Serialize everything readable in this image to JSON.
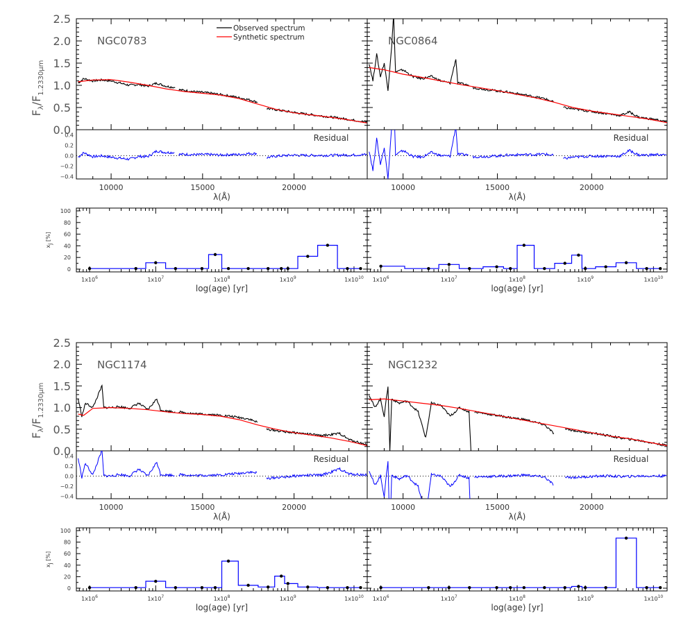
{
  "chart_data": {
    "type": "line",
    "legend": {
      "placement": "top-left-of-first-panel",
      "entries": [
        {
          "label": "Observed spectrum",
          "color": "#000000"
        },
        {
          "label": "Synthetic spectrum",
          "color": "#ff0000"
        }
      ]
    },
    "spectrum_ylabel": "Fλ/F1.2330μm",
    "spectrum_ylabel_main": "F",
    "spectrum_ylabel_sub1": "λ",
    "spectrum_ylabel_mid": "/F",
    "spectrum_ylabel_sub2": "1.2330μm",
    "spectrum_yticks": [
      "0.0",
      "0.5",
      "1.0",
      "1.5",
      "2.0",
      "2.5"
    ],
    "spectrum_ylim": [
      0,
      2.5
    ],
    "wavelength_xlabel": "λ(Å)",
    "wavelength_xlim": [
      8100,
      24000
    ],
    "wavelength_xticks": [
      "10000",
      "15000",
      "20000"
    ],
    "residual_label": "Residual",
    "residual_ylim": [
      -0.45,
      0.5
    ],
    "residual_yticks": [
      "0.4",
      "0.2",
      "0.0",
      "−0.2",
      "−0.4"
    ],
    "age_xlabel": "log(age) [yr]",
    "age_ylabel": "x",
    "age_ylabel_sub": "j",
    "age_ylabel_unit": " [%]",
    "age_yticks": [
      "0",
      "20",
      "40",
      "60",
      "80",
      "100"
    ],
    "age_ylim": [
      0,
      100
    ],
    "age_xlim_log": [
      5.8,
      10.2
    ],
    "age_xticks": [
      {
        "base": "1x10",
        "exp": "6"
      },
      {
        "base": "1x10",
        "exp": "7"
      },
      {
        "base": "1x10",
        "exp": "8"
      },
      {
        "base": "1x10",
        "exp": "9"
      },
      {
        "base": "1x10",
        "exp": "10"
      }
    ],
    "age_grid_log": [
      6.0,
      6.7,
      7.0,
      7.3,
      7.7,
      7.9,
      8.1,
      8.4,
      8.7,
      8.9,
      9.0,
      9.3,
      9.6,
      9.9,
      10.1
    ],
    "panels": [
      {
        "galaxy": "NGC0783",
        "synthetic": [
          [
            8200,
            1.08
          ],
          [
            9000,
            1.12
          ],
          [
            10000,
            1.13
          ],
          [
            11000,
            1.07
          ],
          [
            12000,
            1.0
          ],
          [
            13000,
            0.92
          ],
          [
            14000,
            0.86
          ],
          [
            15000,
            0.82
          ],
          [
            16000,
            0.78
          ],
          [
            17000,
            0.7
          ],
          [
            18000,
            0.58
          ],
          [
            19000,
            0.46
          ],
          [
            20000,
            0.38
          ],
          [
            21000,
            0.33
          ],
          [
            22000,
            0.28
          ],
          [
            23000,
            0.22
          ],
          [
            24000,
            0.15
          ]
        ],
        "observed_segments": [
          [
            [
              8200,
              1.05
            ],
            [
              8500,
              1.15
            ],
            [
              9000,
              1.1
            ],
            [
              9500,
              1.12
            ],
            [
              10000,
              1.1
            ],
            [
              10500,
              1.05
            ],
            [
              11000,
              1.0
            ],
            [
              11500,
              1.02
            ],
            [
              12000,
              0.98
            ],
            [
              12500,
              1.05
            ],
            [
              13000,
              0.98
            ],
            [
              13500,
              0.95
            ]
          ],
          [
            [
              13700,
              0.9
            ],
            [
              14500,
              0.86
            ],
            [
              15500,
              0.82
            ],
            [
              16500,
              0.76
            ],
            [
              17500,
              0.68
            ],
            [
              18000,
              0.62
            ]
          ],
          [
            [
              18500,
              0.48
            ],
            [
              19500,
              0.42
            ],
            [
              20500,
              0.36
            ],
            [
              21500,
              0.31
            ],
            [
              22500,
              0.26
            ],
            [
              23500,
              0.2
            ],
            [
              24000,
              0.17
            ]
          ]
        ],
        "bins": [
          {
            "x": 6.0,
            "y": 1
          },
          {
            "x": 6.7,
            "y": 1
          },
          {
            "x": 7.0,
            "y": 11
          },
          {
            "x": 7.3,
            "y": 1
          },
          {
            "x": 7.7,
            "y": 1
          },
          {
            "x": 7.9,
            "y": 25
          },
          {
            "x": 8.1,
            "y": 1
          },
          {
            "x": 8.4,
            "y": 1
          },
          {
            "x": 8.7,
            "y": 1
          },
          {
            "x": 8.9,
            "y": 1
          },
          {
            "x": 9.0,
            "y": 1
          },
          {
            "x": 9.3,
            "y": 22
          },
          {
            "x": 9.6,
            "y": 41
          },
          {
            "x": 9.9,
            "y": 1
          },
          {
            "x": 10.1,
            "y": 1
          }
        ]
      },
      {
        "galaxy": "NGC0864",
        "synthetic": [
          [
            8200,
            1.4
          ],
          [
            9000,
            1.35
          ],
          [
            10000,
            1.25
          ],
          [
            11000,
            1.18
          ],
          [
            12000,
            1.1
          ],
          [
            13000,
            1.02
          ],
          [
            14000,
            0.95
          ],
          [
            15000,
            0.88
          ],
          [
            16000,
            0.8
          ],
          [
            17000,
            0.72
          ],
          [
            18000,
            0.62
          ],
          [
            19000,
            0.5
          ],
          [
            20000,
            0.42
          ],
          [
            21000,
            0.36
          ],
          [
            22000,
            0.3
          ],
          [
            23000,
            0.24
          ],
          [
            24000,
            0.16
          ]
        ],
        "observed_segments": [
          [
            [
              8200,
              1.5
            ],
            [
              8400,
              1.1
            ],
            [
              8600,
              1.7
            ],
            [
              8800,
              1.2
            ],
            [
              9000,
              1.5
            ],
            [
              9200,
              0.9
            ],
            [
              9400,
              1.9
            ],
            [
              9500,
              2.6
            ],
            [
              9600,
              1.3
            ],
            [
              10000,
              1.35
            ],
            [
              10500,
              1.2
            ],
            [
              11000,
              1.15
            ],
            [
              11500,
              1.2
            ],
            [
              12000,
              1.1
            ],
            [
              12500,
              1.05
            ],
            [
              12800,
              1.6
            ],
            [
              12900,
              1.05
            ],
            [
              13500,
              1.0
            ]
          ],
          [
            [
              13700,
              0.95
            ],
            [
              14500,
              0.9
            ],
            [
              15500,
              0.85
            ],
            [
              16500,
              0.78
            ],
            [
              17500,
              0.7
            ],
            [
              18000,
              0.62
            ]
          ],
          [
            [
              18500,
              0.5
            ],
            [
              19500,
              0.44
            ],
            [
              20500,
              0.38
            ],
            [
              21500,
              0.32
            ],
            [
              22000,
              0.4
            ],
            [
              22500,
              0.28
            ],
            [
              23500,
              0.22
            ],
            [
              24000,
              0.17
            ]
          ]
        ],
        "bins": [
          {
            "x": 6.0,
            "y": 5
          },
          {
            "x": 6.7,
            "y": 1
          },
          {
            "x": 7.0,
            "y": 8
          },
          {
            "x": 7.3,
            "y": 1
          },
          {
            "x": 7.7,
            "y": 4
          },
          {
            "x": 7.9,
            "y": 1
          },
          {
            "x": 8.1,
            "y": 41
          },
          {
            "x": 8.4,
            "y": 1
          },
          {
            "x": 8.7,
            "y": 10
          },
          {
            "x": 8.9,
            "y": 24
          },
          {
            "x": 9.0,
            "y": 1
          },
          {
            "x": 9.3,
            "y": 4
          },
          {
            "x": 9.6,
            "y": 11
          },
          {
            "x": 9.9,
            "y": 1
          },
          {
            "x": 10.1,
            "y": 1
          }
        ]
      },
      {
        "galaxy": "NGC1174",
        "synthetic": [
          [
            8200,
            0.85
          ],
          [
            8500,
            0.82
          ],
          [
            9000,
            0.98
          ],
          [
            10000,
            1.0
          ],
          [
            11000,
            0.98
          ],
          [
            12000,
            0.95
          ],
          [
            13000,
            0.9
          ],
          [
            14000,
            0.86
          ],
          [
            15000,
            0.84
          ],
          [
            16000,
            0.8
          ],
          [
            17000,
            0.72
          ],
          [
            18000,
            0.6
          ],
          [
            19000,
            0.5
          ],
          [
            20000,
            0.42
          ],
          [
            21000,
            0.36
          ],
          [
            22000,
            0.3
          ],
          [
            23000,
            0.22
          ],
          [
            24000,
            0.12
          ]
        ],
        "observed_segments": [
          [
            [
              8200,
              1.2
            ],
            [
              8400,
              0.8
            ],
            [
              8600,
              1.1
            ],
            [
              9000,
              1.0
            ],
            [
              9500,
              1.5
            ],
            [
              9600,
              1.0
            ],
            [
              10000,
              1.0
            ],
            [
              10500,
              1.02
            ],
            [
              11000,
              0.98
            ],
            [
              11500,
              1.1
            ],
            [
              12000,
              0.95
            ],
            [
              12500,
              1.2
            ],
            [
              12700,
              0.95
            ],
            [
              13000,
              0.92
            ],
            [
              13500,
              0.9
            ]
          ],
          [
            [
              13700,
              0.9
            ],
            [
              14500,
              0.86
            ],
            [
              15500,
              0.84
            ],
            [
              16500,
              0.8
            ],
            [
              17500,
              0.74
            ],
            [
              18000,
              0.66
            ]
          ],
          [
            [
              18500,
              0.5
            ],
            [
              19500,
              0.44
            ],
            [
              20500,
              0.4
            ],
            [
              21500,
              0.35
            ],
            [
              22500,
              0.4
            ],
            [
              23000,
              0.26
            ],
            [
              23500,
              0.2
            ],
            [
              24000,
              0.14
            ]
          ]
        ],
        "bins": [
          {
            "x": 6.0,
            "y": 1
          },
          {
            "x": 6.7,
            "y": 1
          },
          {
            "x": 7.0,
            "y": 12
          },
          {
            "x": 7.3,
            "y": 1
          },
          {
            "x": 7.7,
            "y": 1
          },
          {
            "x": 7.9,
            "y": 1
          },
          {
            "x": 8.1,
            "y": 47
          },
          {
            "x": 8.4,
            "y": 5
          },
          {
            "x": 8.7,
            "y": 2
          },
          {
            "x": 8.9,
            "y": 21
          },
          {
            "x": 9.0,
            "y": 8
          },
          {
            "x": 9.3,
            "y": 2
          },
          {
            "x": 9.6,
            "y": 1
          },
          {
            "x": 9.9,
            "y": 1
          },
          {
            "x": 10.1,
            "y": 1
          }
        ]
      },
      {
        "galaxy": "NGC1232",
        "synthetic": [
          [
            8200,
            1.18
          ],
          [
            9000,
            1.2
          ],
          [
            10000,
            1.15
          ],
          [
            11000,
            1.1
          ],
          [
            12000,
            1.05
          ],
          [
            13000,
            0.98
          ],
          [
            14000,
            0.9
          ],
          [
            15000,
            0.82
          ],
          [
            16000,
            0.74
          ],
          [
            17000,
            0.66
          ],
          [
            18000,
            0.58
          ],
          [
            19000,
            0.5
          ],
          [
            20000,
            0.42
          ],
          [
            21000,
            0.34
          ],
          [
            22000,
            0.28
          ],
          [
            23000,
            0.2
          ],
          [
            24000,
            0.12
          ]
        ],
        "observed_segments": [
          [
            [
              8200,
              1.3
            ],
            [
              8500,
              1.0
            ],
            [
              8800,
              1.2
            ],
            [
              9000,
              0.8
            ],
            [
              9200,
              1.5
            ],
            [
              9300,
              0.0
            ],
            [
              9400,
              1.2
            ],
            [
              9800,
              1.1
            ],
            [
              10200,
              1.15
            ],
            [
              10800,
              0.9
            ],
            [
              11200,
              0.3
            ],
            [
              11500,
              1.1
            ],
            [
              12000,
              1.05
            ],
            [
              12500,
              0.8
            ],
            [
              13000,
              1.0
            ],
            [
              13500,
              0.9
            ],
            [
              13600,
              0.0
            ]
          ],
          [
            [
              13800,
              0.9
            ],
            [
              14500,
              0.85
            ],
            [
              15500,
              0.78
            ],
            [
              16500,
              0.72
            ],
            [
              17500,
              0.6
            ],
            [
              18000,
              0.4
            ]
          ],
          [
            [
              18600,
              0.5
            ],
            [
              19500,
              0.44
            ],
            [
              20500,
              0.38
            ],
            [
              21500,
              0.3
            ],
            [
              22500,
              0.24
            ],
            [
              23500,
              0.16
            ],
            [
              24000,
              0.12
            ]
          ]
        ],
        "bins": [
          {
            "x": 6.0,
            "y": 1
          },
          {
            "x": 6.7,
            "y": 1
          },
          {
            "x": 7.0,
            "y": 1
          },
          {
            "x": 7.3,
            "y": 1
          },
          {
            "x": 7.7,
            "y": 1
          },
          {
            "x": 7.9,
            "y": 1
          },
          {
            "x": 8.1,
            "y": 1
          },
          {
            "x": 8.4,
            "y": 1
          },
          {
            "x": 8.7,
            "y": 1
          },
          {
            "x": 8.9,
            "y": 3
          },
          {
            "x": 9.0,
            "y": 1
          },
          {
            "x": 9.3,
            "y": 1
          },
          {
            "x": 9.6,
            "y": 87
          },
          {
            "x": 9.9,
            "y": 1
          },
          {
            "x": 10.1,
            "y": 1
          }
        ]
      }
    ]
  }
}
